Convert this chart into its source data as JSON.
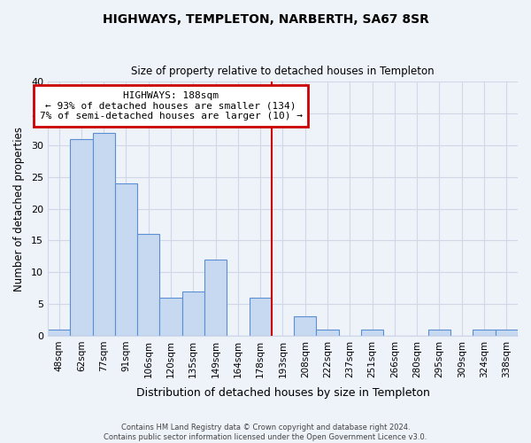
{
  "title": "HIGHWAYS, TEMPLETON, NARBERTH, SA67 8SR",
  "subtitle": "Size of property relative to detached houses in Templeton",
  "xlabel": "Distribution of detached houses by size in Templeton",
  "ylabel": "Number of detached properties",
  "bar_labels": [
    "48sqm",
    "62sqm",
    "77sqm",
    "91sqm",
    "106sqm",
    "120sqm",
    "135sqm",
    "149sqm",
    "164sqm",
    "178sqm",
    "193sqm",
    "208sqm",
    "222sqm",
    "237sqm",
    "251sqm",
    "266sqm",
    "280sqm",
    "295sqm",
    "309sqm",
    "324sqm",
    "338sqm"
  ],
  "bar_values": [
    1,
    31,
    32,
    24,
    16,
    6,
    7,
    12,
    0,
    6,
    0,
    3,
    1,
    0,
    1,
    0,
    0,
    1,
    0,
    1,
    1
  ],
  "bar_color": "#c6d9f0",
  "bar_edge_color": "#5b8fd4",
  "vline_x_index": 10,
  "vline_color": "#cc0000",
  "annotation_title": "HIGHWAYS: 188sqm",
  "annotation_line1": "← 93% of detached houses are smaller (134)",
  "annotation_line2": "7% of semi-detached houses are larger (10) →",
  "annotation_box_color": "#ffffff",
  "annotation_box_edge": "#cc0000",
  "ylim": [
    0,
    40
  ],
  "yticks": [
    0,
    5,
    10,
    15,
    20,
    25,
    30,
    35,
    40
  ],
  "footer1": "Contains HM Land Registry data © Crown copyright and database right 2024.",
  "footer2": "Contains public sector information licensed under the Open Government Licence v3.0.",
  "background_color": "#eef2f9",
  "grid_color": "#d0d8e8"
}
